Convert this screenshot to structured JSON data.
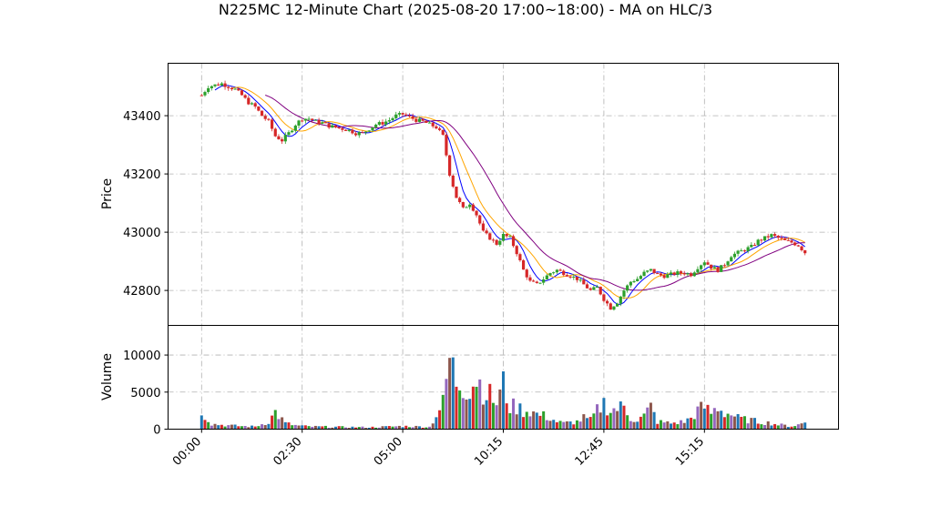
{
  "chart_data": {
    "type": "candlestick",
    "title": "N225MC 12-Minute Chart (2025-08-20 17:00~18:00) - MA on HLC/3",
    "xlabel": "",
    "price_panel": {
      "ylabel": "Price",
      "ylim": [
        42680,
        43580
      ],
      "yticks": [
        42800,
        43000,
        43200,
        43400
      ],
      "grid": true
    },
    "volume_panel": {
      "ylabel": "Volume",
      "ylim": [
        0,
        14000
      ],
      "yticks": [
        0,
        5000,
        10000
      ],
      "grid": true
    },
    "x_tick_labels": [
      "00:00",
      "02:30",
      "05:00",
      "10:15",
      "12:45",
      "15:15"
    ],
    "x_tick_positions": [
      0,
      30,
      60,
      90,
      120,
      150
    ],
    "x_range": [
      -10,
      190
    ],
    "bar_count": 181,
    "price_anchors": [
      [
        0,
        43470
      ],
      [
        2,
        43500
      ],
      [
        4,
        43505
      ],
      [
        6,
        43510
      ],
      [
        8,
        43500
      ],
      [
        10,
        43490
      ],
      [
        12,
        43470
      ],
      [
        14,
        43445
      ],
      [
        16,
        43430
      ],
      [
        18,
        43400
      ],
      [
        20,
        43380
      ],
      [
        22,
        43330
      ],
      [
        24,
        43315
      ],
      [
        26,
        43340
      ],
      [
        28,
        43370
      ],
      [
        30,
        43390
      ],
      [
        32,
        43390
      ],
      [
        34,
        43380
      ],
      [
        36,
        43375
      ],
      [
        38,
        43365
      ],
      [
        40,
        43360
      ],
      [
        42,
        43355
      ],
      [
        44,
        43350
      ],
      [
        46,
        43340
      ],
      [
        48,
        43340
      ],
      [
        50,
        43355
      ],
      [
        52,
        43370
      ],
      [
        54,
        43375
      ],
      [
        56,
        43385
      ],
      [
        58,
        43400
      ],
      [
        60,
        43405
      ],
      [
        62,
        43395
      ],
      [
        64,
        43385
      ],
      [
        66,
        43380
      ],
      [
        68,
        43370
      ],
      [
        70,
        43360
      ],
      [
        72,
        43330
      ],
      [
        74,
        43200
      ],
      [
        76,
        43120
      ],
      [
        78,
        43080
      ],
      [
        80,
        43100
      ],
      [
        82,
        43060
      ],
      [
        84,
        43000
      ],
      [
        86,
        42980
      ],
      [
        88,
        42960
      ],
      [
        90,
        42990
      ],
      [
        92,
        42980
      ],
      [
        94,
        42930
      ],
      [
        96,
        42870
      ],
      [
        98,
        42830
      ],
      [
        100,
        42820
      ],
      [
        102,
        42840
      ],
      [
        104,
        42860
      ],
      [
        106,
        42870
      ],
      [
        108,
        42860
      ],
      [
        110,
        42850
      ],
      [
        112,
        42840
      ],
      [
        114,
        42820
      ],
      [
        116,
        42800
      ],
      [
        118,
        42810
      ],
      [
        120,
        42770
      ],
      [
        122,
        42740
      ],
      [
        124,
        42760
      ],
      [
        126,
        42800
      ],
      [
        128,
        42830
      ],
      [
        130,
        42840
      ],
      [
        132,
        42860
      ],
      [
        134,
        42870
      ],
      [
        136,
        42855
      ],
      [
        138,
        42850
      ],
      [
        140,
        42855
      ],
      [
        142,
        42860
      ],
      [
        144,
        42860
      ],
      [
        146,
        42855
      ],
      [
        148,
        42880
      ],
      [
        150,
        42900
      ],
      [
        152,
        42880
      ],
      [
        154,
        42870
      ],
      [
        156,
        42890
      ],
      [
        158,
        42920
      ],
      [
        160,
        42930
      ],
      [
        162,
        42940
      ],
      [
        164,
        42950
      ],
      [
        166,
        42970
      ],
      [
        168,
        42980
      ],
      [
        170,
        42990
      ],
      [
        172,
        42980
      ],
      [
        174,
        42970
      ],
      [
        176,
        42965
      ],
      [
        178,
        42955
      ],
      [
        180,
        42930
      ]
    ],
    "volume_anchors": [
      [
        0,
        2500
      ],
      [
        3,
        700
      ],
      [
        8,
        500
      ],
      [
        12,
        400
      ],
      [
        16,
        350
      ],
      [
        20,
        1000
      ],
      [
        22,
        2300
      ],
      [
        25,
        800
      ],
      [
        28,
        500
      ],
      [
        32,
        350
      ],
      [
        40,
        300
      ],
      [
        50,
        250
      ],
      [
        60,
        400
      ],
      [
        68,
        300
      ],
      [
        72,
        3500
      ],
      [
        74,
        9500
      ],
      [
        76,
        6500
      ],
      [
        78,
        6000
      ],
      [
        80,
        5500
      ],
      [
        82,
        7000
      ],
      [
        84,
        5500
      ],
      [
        86,
        4500
      ],
      [
        88,
        3500
      ],
      [
        90,
        6000
      ],
      [
        92,
        3000
      ],
      [
        94,
        3000
      ],
      [
        96,
        2500
      ],
      [
        98,
        2500
      ],
      [
        100,
        2000
      ],
      [
        102,
        1800
      ],
      [
        104,
        1500
      ],
      [
        106,
        1000
      ],
      [
        108,
        800
      ],
      [
        110,
        900
      ],
      [
        112,
        1000
      ],
      [
        114,
        1500
      ],
      [
        116,
        1200
      ],
      [
        118,
        2500
      ],
      [
        120,
        3500
      ],
      [
        122,
        2500
      ],
      [
        124,
        2800
      ],
      [
        126,
        3000
      ],
      [
        128,
        1500
      ],
      [
        130,
        1200
      ],
      [
        132,
        1800
      ],
      [
        134,
        3000
      ],
      [
        136,
        1000
      ],
      [
        138,
        900
      ],
      [
        140,
        800
      ],
      [
        142,
        900
      ],
      [
        144,
        1000
      ],
      [
        146,
        1500
      ],
      [
        148,
        2500
      ],
      [
        150,
        3000
      ],
      [
        152,
        2200
      ],
      [
        154,
        3000
      ],
      [
        156,
        2200
      ],
      [
        158,
        2000
      ],
      [
        160,
        1500
      ],
      [
        162,
        1300
      ],
      [
        164,
        1200
      ],
      [
        166,
        1000
      ],
      [
        168,
        900
      ],
      [
        170,
        800
      ],
      [
        172,
        600
      ],
      [
        174,
        500
      ],
      [
        176,
        400
      ],
      [
        178,
        600
      ],
      [
        180,
        900
      ]
    ],
    "moving_averages": [
      {
        "period": 5,
        "color": "#0000ff"
      },
      {
        "period": 10,
        "color": "#ffa500"
      },
      {
        "period": 20,
        "color": "#800080"
      }
    ],
    "colors": {
      "up_candle": "#2ca02c",
      "down_candle": "#d62728",
      "volume_palette": [
        "#1f77b4",
        "#d62728",
        "#2ca02c",
        "#9467bd",
        "#8c564b"
      ]
    }
  }
}
